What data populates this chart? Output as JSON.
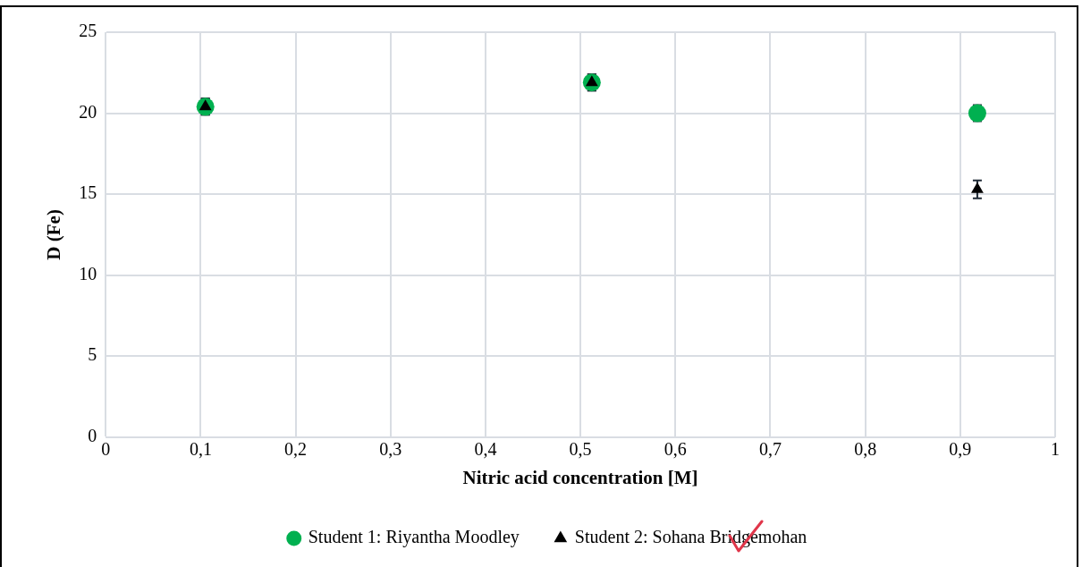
{
  "chart_data": {
    "type": "scatter",
    "xlabel": "Nitric acid concentration [M]",
    "ylabel": "D (Fe)",
    "xlim": [
      0,
      1
    ],
    "xticks": [
      0,
      {
        "value": 0.1,
        "label": "0,1"
      },
      {
        "value": 0.2,
        "label": "0,2"
      },
      {
        "value": 0.3,
        "label": "0,3"
      },
      {
        "value": 0.4,
        "label": "0,4"
      },
      {
        "value": 0.5,
        "label": "0,5"
      },
      {
        "value": 0.6,
        "label": "0,6"
      },
      {
        "value": 0.7,
        "label": "0,7"
      },
      {
        "value": 0.8,
        "label": "0,8"
      },
      {
        "value": 0.9,
        "label": "0,9"
      },
      1
    ],
    "ylim": [
      0,
      25
    ],
    "yticks": [
      0,
      5,
      10,
      15,
      20,
      25
    ],
    "grid": true,
    "legend": "bottom",
    "x": [
      0.105,
      0.512,
      0.918
    ],
    "series": [
      {
        "name": "Student 1: Riyantha Moodley",
        "color": "#00b050",
        "marker": "circle",
        "values": [
          20.4,
          21.9,
          20.0
        ],
        "errors": [
          0.5,
          0.5,
          0.5
        ]
      },
      {
        "name": "Student 2: Sohana Bridgemohan",
        "color": "#000000",
        "marker": "triangle",
        "values": [
          20.4,
          21.9,
          15.3
        ],
        "errors": [
          0.5,
          0.5,
          0.55
        ]
      }
    ]
  }
}
